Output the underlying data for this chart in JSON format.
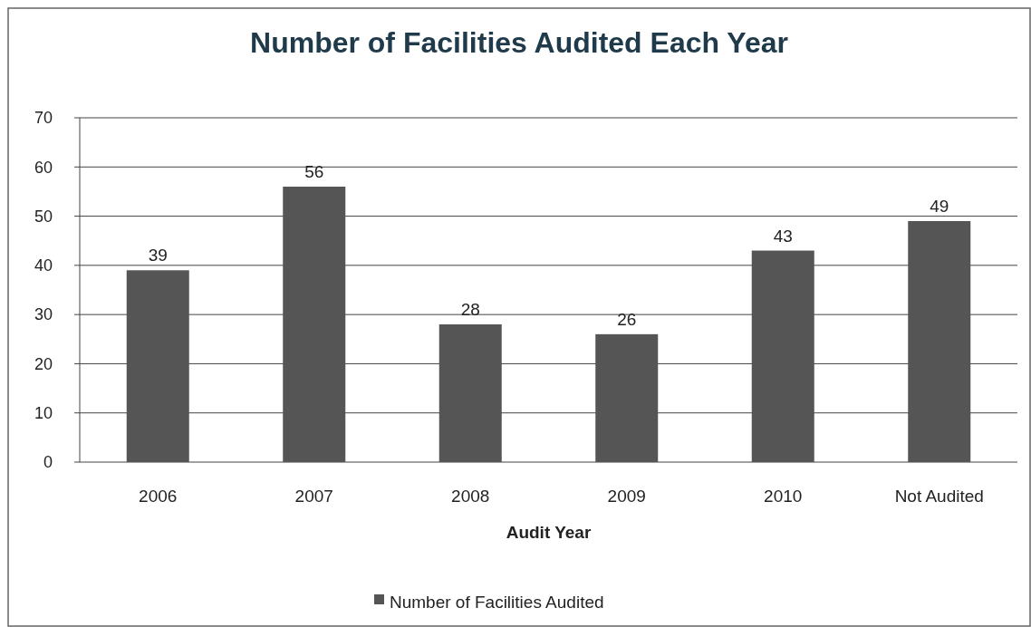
{
  "chart_data": {
    "type": "bar",
    "title": "Number of Facilities Audited Each Year",
    "xlabel": "Audit Year",
    "categories": [
      "2006",
      "2007",
      "2008",
      "2009",
      "2010",
      "Not Audited"
    ],
    "series": [
      {
        "name": "Number of Facilities Audited",
        "color": "#555555",
        "values": [
          39,
          56,
          28,
          26,
          43,
          49
        ]
      }
    ],
    "ylim": [
      0,
      70
    ],
    "yticks": [
      0,
      10,
      20,
      30,
      40,
      50,
      60,
      70
    ],
    "grid": "y",
    "legend": "bottom",
    "data_labels": true
  }
}
